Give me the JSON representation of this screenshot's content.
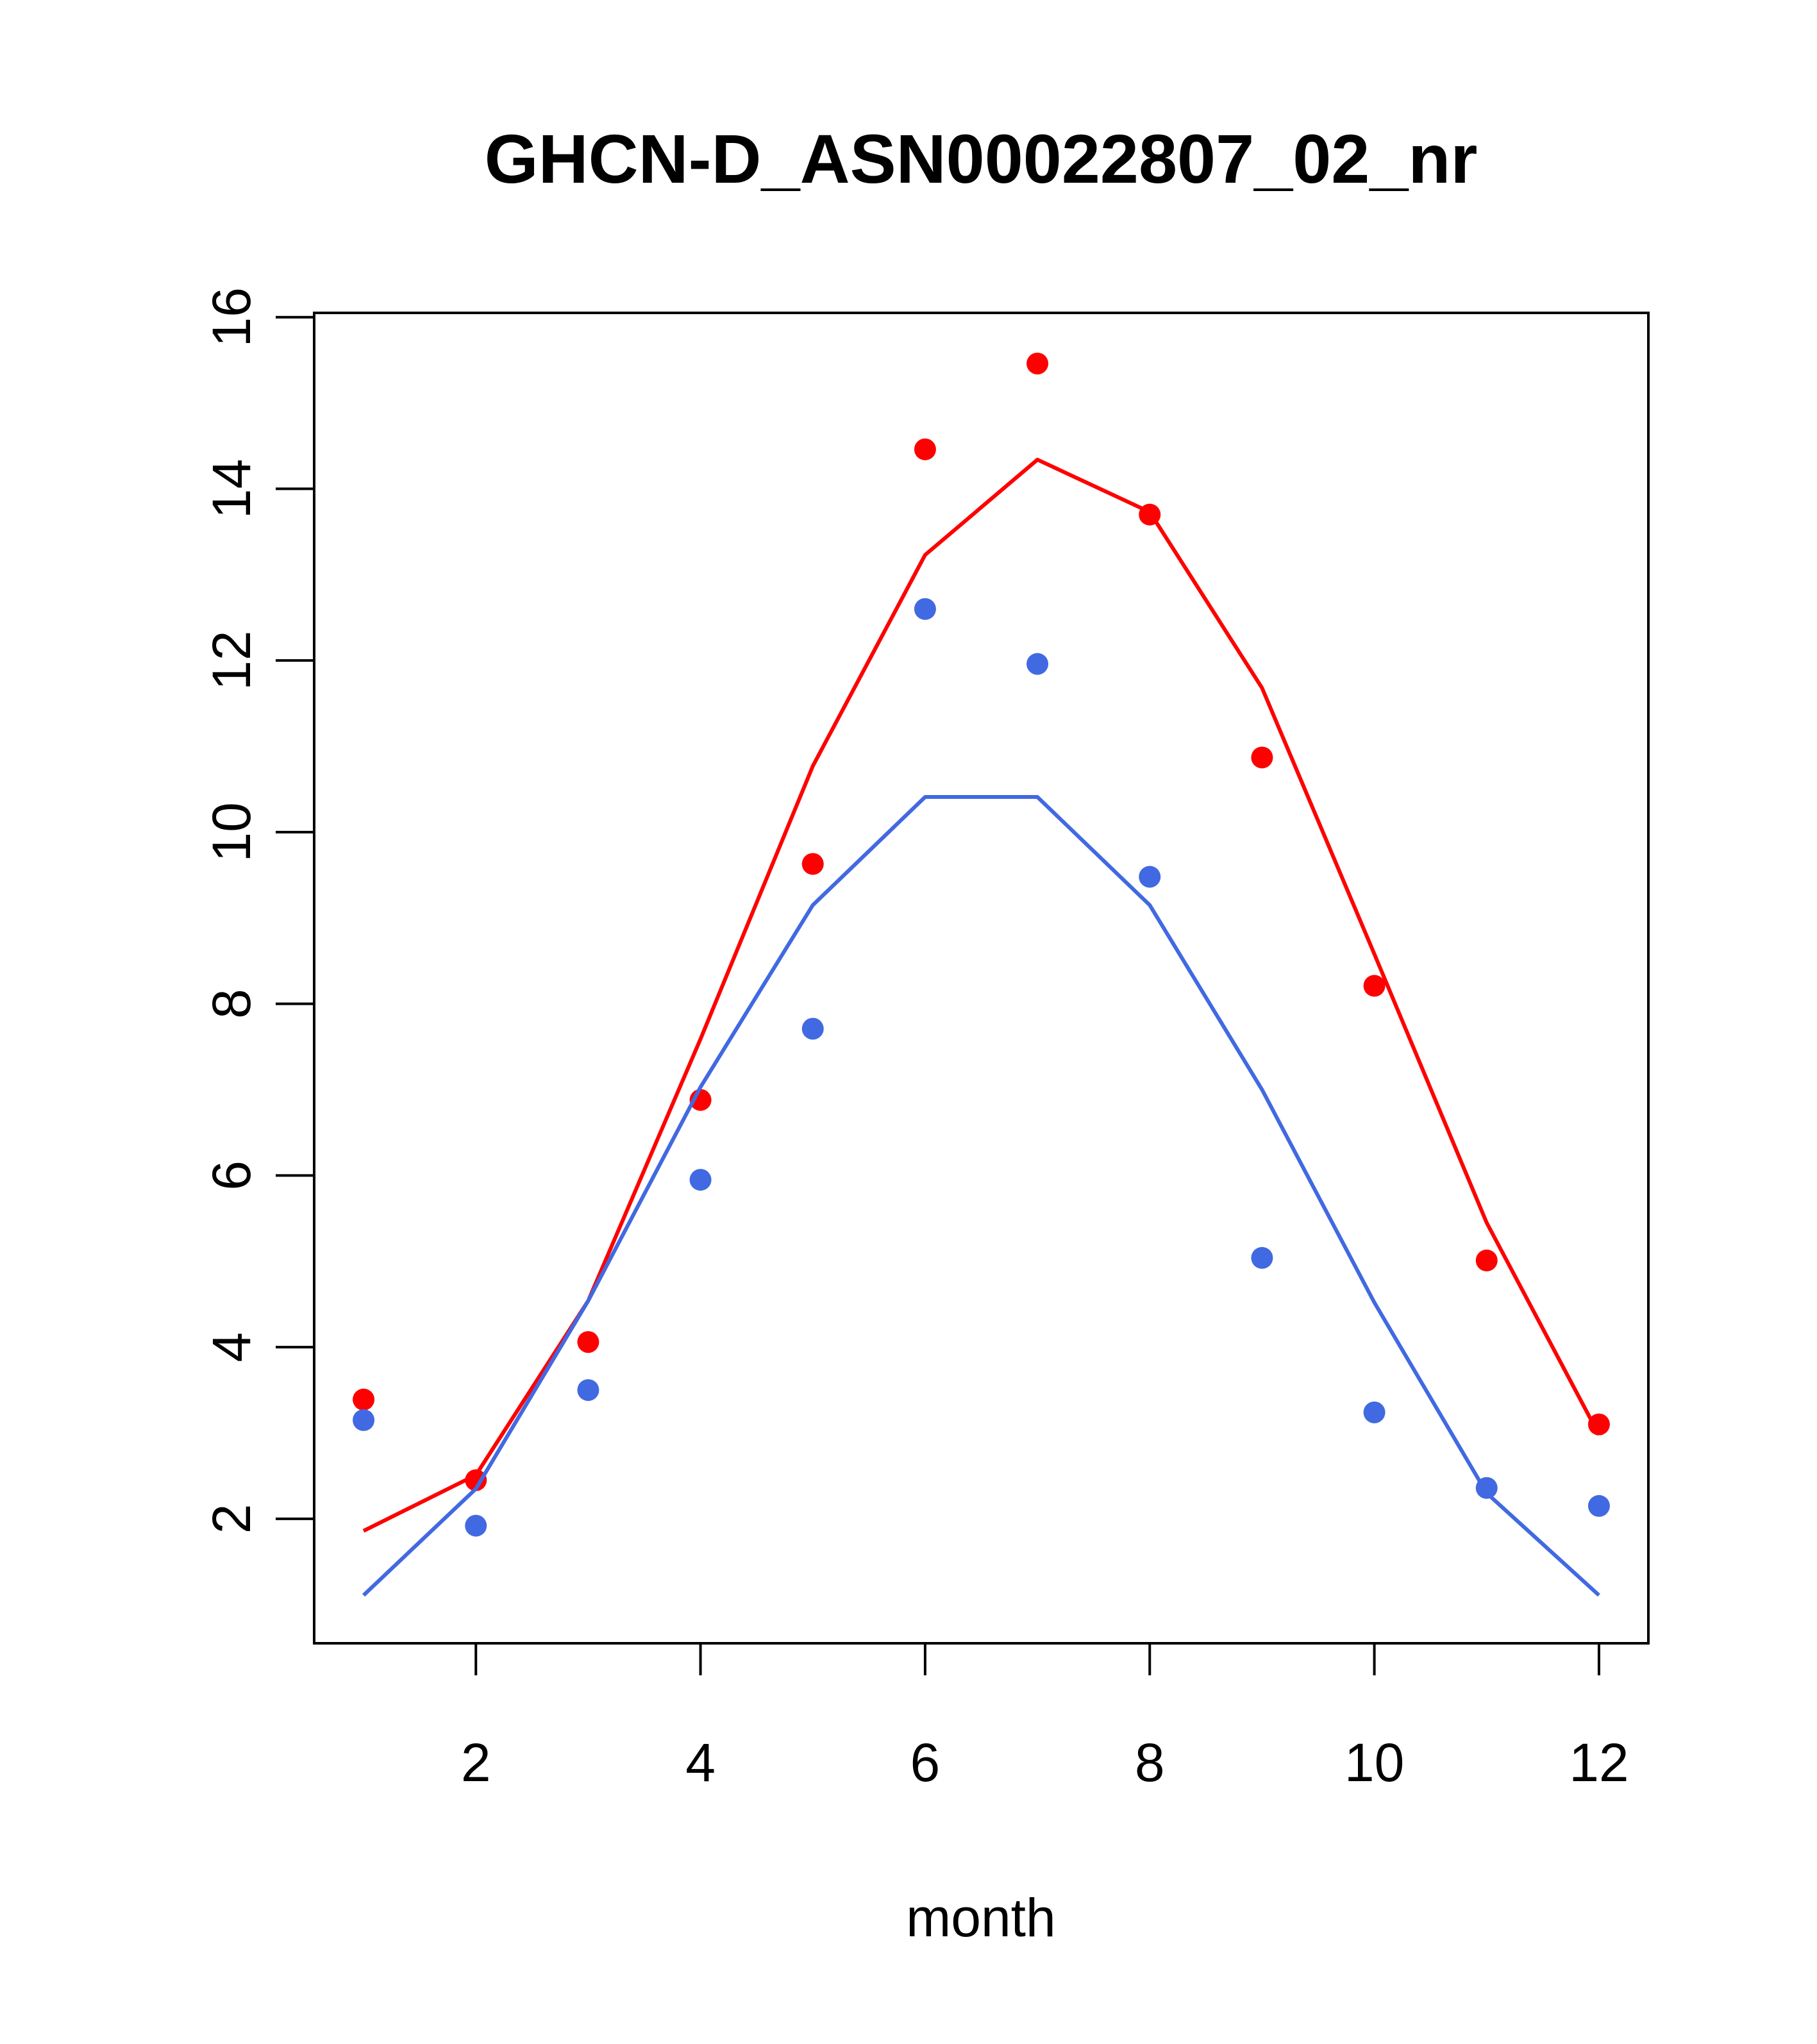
{
  "chart_data": {
    "type": "line",
    "title": "GHCN-D_ASN00022807_02_nr",
    "xlabel": "month",
    "ylabel": "",
    "xlim": [
      0.56,
      12.44
    ],
    "ylim": [
      0.55,
      16.05
    ],
    "xticks": [
      2,
      4,
      6,
      8,
      10,
      12
    ],
    "yticks": [
      2,
      4,
      6,
      8,
      10,
      12,
      14,
      16
    ],
    "grid": false,
    "x": [
      1,
      2,
      3,
      4,
      5,
      6,
      7,
      8,
      9,
      10,
      11,
      12
    ],
    "series": [
      {
        "name": "red points",
        "kind": "points",
        "color": "#ff0000",
        "values": [
          3.39,
          2.45,
          4.06,
          6.88,
          9.63,
          14.46,
          15.46,
          13.7,
          10.87,
          8.21,
          5.01,
          3.1
        ]
      },
      {
        "name": "blue points",
        "kind": "points",
        "color": "#4169e1",
        "values": [
          3.15,
          1.92,
          3.5,
          5.95,
          7.71,
          12.6,
          11.96,
          9.48,
          5.04,
          3.24,
          2.36,
          2.15
        ]
      },
      {
        "name": "red line",
        "kind": "line",
        "color": "#ff0000",
        "values": [
          1.86,
          2.51,
          4.54,
          7.59,
          10.77,
          13.23,
          14.34,
          13.73,
          11.68,
          8.58,
          5.45,
          2.98
        ]
      },
      {
        "name": "blue line",
        "kind": "line",
        "color": "#4169e1",
        "values": [
          1.11,
          2.35,
          4.54,
          7.03,
          9.15,
          10.41,
          10.41,
          9.15,
          7.0,
          4.52,
          2.3,
          1.11
        ]
      }
    ]
  }
}
